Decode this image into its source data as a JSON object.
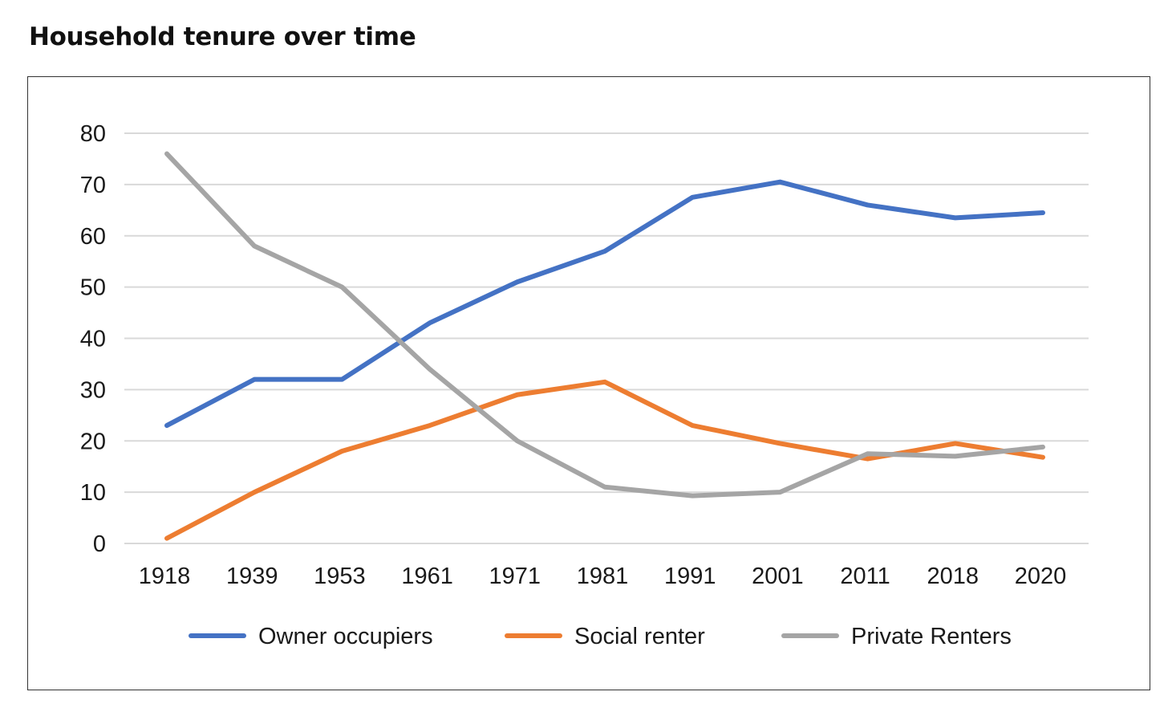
{
  "title": "Household tenure over time",
  "chart_data": {
    "type": "line",
    "title": "",
    "xlabel": "",
    "ylabel": "",
    "categories": [
      "1918",
      "1939",
      "1953",
      "1961",
      "1971",
      "1981",
      "1991",
      "2001",
      "2011",
      "2018",
      "2020"
    ],
    "ylim": [
      0,
      80
    ],
    "yticks": [
      "0",
      "10",
      "20",
      "30",
      "40",
      "50",
      "60",
      "70",
      "80"
    ],
    "grid": true,
    "legend_position": "bottom",
    "series": [
      {
        "name": "Owner occupiers",
        "color": "#4472c4",
        "values": [
          23,
          32,
          32,
          43,
          51,
          57,
          67.5,
          70.5,
          66,
          63.5,
          64.5
        ]
      },
      {
        "name": "Social renter",
        "color": "#ed7d31",
        "values": [
          1,
          10,
          18,
          23,
          29,
          31.5,
          23,
          19.5,
          16.5,
          19.5,
          16.8
        ]
      },
      {
        "name": "Private Renters",
        "color": "#a5a5a5",
        "values": [
          76,
          58,
          50,
          34,
          20,
          11,
          9.3,
          10,
          17.5,
          17,
          18.8
        ]
      }
    ]
  }
}
